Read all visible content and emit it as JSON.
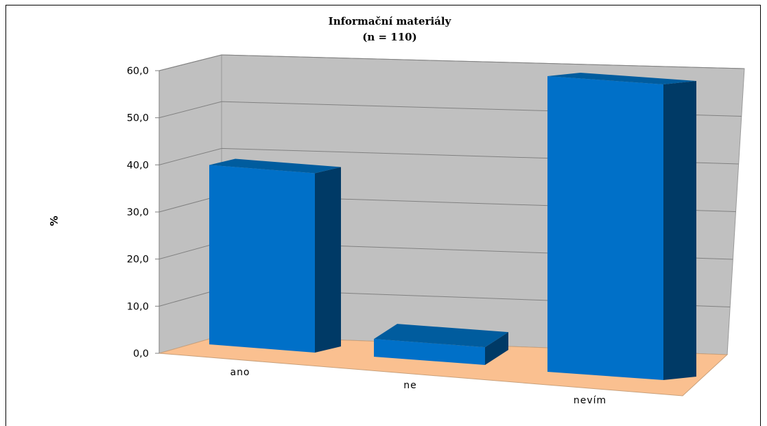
{
  "chart_data": {
    "type": "bar",
    "title": "Informační materiály",
    "subtitle": "(n = 110)",
    "ylabel": "%",
    "xlabel": "",
    "ylim": [
      0,
      60
    ],
    "yticks": [
      "0,0",
      "10,0",
      "20,0",
      "30,0",
      "40,0",
      "50,0",
      "60,0"
    ],
    "categories": [
      "ano",
      "ne",
      "nevím"
    ],
    "values": [
      36.4,
      3.6,
      60.0
    ],
    "grid": true,
    "legend": "none",
    "colors": {
      "bar_front": "#0070C8",
      "bar_top": "#005C9E",
      "bar_side": "#003A66",
      "back_wall": "#C0C0C0",
      "floor": "#FAC090",
      "gridline": "#808080"
    }
  }
}
